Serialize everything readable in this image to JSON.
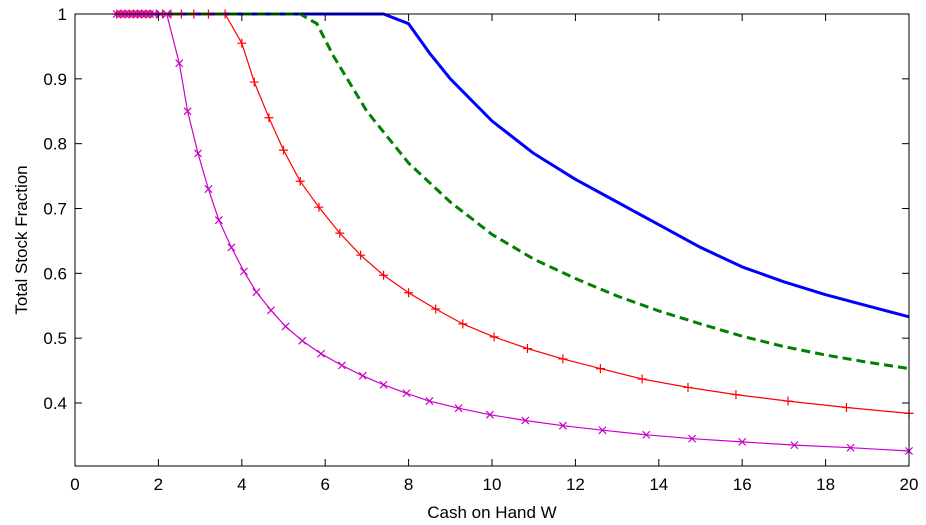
{
  "chart_data": {
    "type": "line",
    "title": "",
    "xlabel": "Cash on Hand W",
    "ylabel": "Total Stock Fraction",
    "xlim": [
      0,
      20
    ],
    "ylim": [
      0.3,
      1.0
    ],
    "xticks": [
      0,
      2,
      4,
      6,
      8,
      10,
      12,
      14,
      16,
      18,
      20
    ],
    "yticks": [
      0.4,
      0.5,
      0.6,
      0.7,
      0.8,
      0.9,
      1
    ],
    "xtick_labels": [
      "0",
      "2",
      "4",
      "6",
      "8",
      "10",
      "12",
      "14",
      "16",
      "18",
      "20"
    ],
    "ytick_labels": [
      "0.4",
      "0.5",
      "0.6",
      "0.7",
      "0.8",
      "0.9",
      "1"
    ],
    "grid": false,
    "legend": "none",
    "series": [
      {
        "color": "#0000ff",
        "style": "solid",
        "marker": "none",
        "points": [
          [
            1.0,
            1.0
          ],
          [
            7.4,
            1.0
          ],
          [
            8.0,
            0.985
          ],
          [
            8.5,
            0.94
          ],
          [
            9.0,
            0.9
          ],
          [
            10.0,
            0.835
          ],
          [
            11.0,
            0.785
          ],
          [
            12.0,
            0.745
          ],
          [
            13.0,
            0.71
          ],
          [
            14.0,
            0.675
          ],
          [
            15.0,
            0.64
          ],
          [
            16.0,
            0.61
          ],
          [
            17.0,
            0.587
          ],
          [
            18.0,
            0.567
          ],
          [
            19.0,
            0.55
          ],
          [
            20.0,
            0.533
          ]
        ]
      },
      {
        "color": "#008000",
        "style": "dashed",
        "marker": "none",
        "points": [
          [
            1.0,
            1.0
          ],
          [
            5.4,
            1.0
          ],
          [
            5.8,
            0.985
          ],
          [
            6.2,
            0.935
          ],
          [
            7.0,
            0.85
          ],
          [
            8.0,
            0.77
          ],
          [
            9.0,
            0.71
          ],
          [
            10.0,
            0.66
          ],
          [
            11.0,
            0.622
          ],
          [
            12.0,
            0.592
          ],
          [
            13.0,
            0.565
          ],
          [
            14.0,
            0.542
          ],
          [
            15.0,
            0.522
          ],
          [
            16.0,
            0.503
          ],
          [
            17.0,
            0.487
          ],
          [
            18.0,
            0.474
          ],
          [
            19.0,
            0.463
          ],
          [
            20.0,
            0.453
          ]
        ]
      },
      {
        "color": "#ff0000",
        "style": "solid",
        "marker": "plus",
        "points": [
          [
            1.0,
            1.0
          ],
          [
            1.1,
            1.0
          ],
          [
            1.2,
            1.0
          ],
          [
            1.3,
            1.0
          ],
          [
            1.4,
            1.0
          ],
          [
            1.5,
            1.0
          ],
          [
            1.6,
            1.0
          ],
          [
            1.7,
            1.0
          ],
          [
            1.8,
            1.0
          ],
          [
            1.95,
            1.0
          ],
          [
            2.1,
            1.0
          ],
          [
            2.3,
            1.0
          ],
          [
            2.55,
            1.0
          ],
          [
            2.85,
            1.0
          ],
          [
            3.2,
            1.0
          ],
          [
            3.6,
            1.0
          ],
          [
            4.0,
            0.955
          ],
          [
            4.3,
            0.895
          ],
          [
            4.65,
            0.84
          ],
          [
            5.0,
            0.79
          ],
          [
            5.4,
            0.742
          ],
          [
            5.85,
            0.702
          ],
          [
            6.35,
            0.662
          ],
          [
            6.85,
            0.628
          ],
          [
            7.4,
            0.597
          ],
          [
            8.0,
            0.57
          ],
          [
            8.65,
            0.545
          ],
          [
            9.3,
            0.522
          ],
          [
            10.05,
            0.502
          ],
          [
            10.85,
            0.484
          ],
          [
            11.7,
            0.468
          ],
          [
            12.6,
            0.453
          ],
          [
            13.6,
            0.437
          ],
          [
            14.7,
            0.424
          ],
          [
            15.85,
            0.413
          ],
          [
            17.1,
            0.403
          ],
          [
            18.5,
            0.393
          ],
          [
            20.0,
            0.384
          ]
        ]
      },
      {
        "color": "#cc00cc",
        "style": "solid",
        "marker": "cross",
        "points": [
          [
            1.0,
            1.0
          ],
          [
            1.1,
            1.0
          ],
          [
            1.2,
            1.0
          ],
          [
            1.3,
            1.0
          ],
          [
            1.4,
            1.0
          ],
          [
            1.5,
            1.0
          ],
          [
            1.6,
            1.0
          ],
          [
            1.7,
            1.0
          ],
          [
            1.8,
            1.0
          ],
          [
            1.9,
            1.0
          ],
          [
            2.05,
            1.0
          ],
          [
            2.2,
            1.0
          ],
          [
            2.5,
            0.924
          ],
          [
            2.7,
            0.85
          ],
          [
            2.95,
            0.785
          ],
          [
            3.2,
            0.73
          ],
          [
            3.45,
            0.682
          ],
          [
            3.75,
            0.64
          ],
          [
            4.05,
            0.603
          ],
          [
            4.35,
            0.571
          ],
          [
            4.7,
            0.543
          ],
          [
            5.05,
            0.518
          ],
          [
            5.45,
            0.496
          ],
          [
            5.9,
            0.476
          ],
          [
            6.4,
            0.458
          ],
          [
            6.9,
            0.442
          ],
          [
            7.4,
            0.428
          ],
          [
            7.95,
            0.415
          ],
          [
            8.5,
            0.403
          ],
          [
            9.2,
            0.392
          ],
          [
            9.95,
            0.382
          ],
          [
            10.8,
            0.373
          ],
          [
            11.7,
            0.365
          ],
          [
            12.65,
            0.358
          ],
          [
            13.7,
            0.351
          ],
          [
            14.8,
            0.345
          ],
          [
            16.0,
            0.34
          ],
          [
            17.25,
            0.335
          ],
          [
            18.6,
            0.331
          ],
          [
            20.0,
            0.326
          ]
        ]
      }
    ]
  }
}
